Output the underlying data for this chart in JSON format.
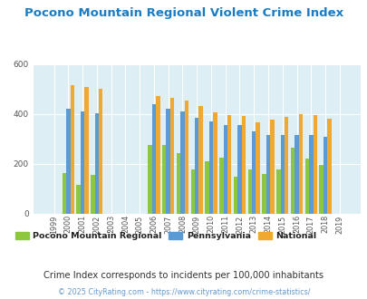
{
  "title": "Pocono Mountain Regional Violent Crime Index",
  "title_color": "#1a7dc4",
  "subtitle": "Crime Index corresponds to incidents per 100,000 inhabitants",
  "subtitle_color": "#333333",
  "footer": "© 2025 CityRating.com - https://www.cityrating.com/crime-statistics/",
  "footer_color": "#6699cc",
  "years": [
    1999,
    2000,
    2001,
    2002,
    2003,
    2004,
    2005,
    2006,
    2007,
    2008,
    2009,
    2010,
    2011,
    2012,
    2013,
    2014,
    2015,
    2016,
    2017,
    2018,
    2019
  ],
  "pocono": [
    0,
    162,
    118,
    155,
    0,
    0,
    0,
    278,
    278,
    245,
    178,
    210,
    225,
    148,
    178,
    160,
    178,
    265,
    220,
    197,
    0
  ],
  "pennsylvania": [
    0,
    420,
    410,
    403,
    0,
    0,
    0,
    440,
    420,
    410,
    385,
    370,
    358,
    355,
    332,
    315,
    315,
    315,
    315,
    308,
    0
  ],
  "national": [
    0,
    515,
    510,
    500,
    0,
    0,
    0,
    474,
    466,
    455,
    431,
    407,
    396,
    393,
    368,
    379,
    388,
    401,
    397,
    383,
    0
  ],
  "pocono_color": "#8dc63f",
  "pennsylvania_color": "#5b9bd5",
  "national_color": "#f0a830",
  "background_color": "#ddeef5",
  "fig_background": "#ffffff",
  "ylim": [
    0,
    600
  ],
  "yticks": [
    0,
    200,
    400,
    600
  ],
  "legend_labels": [
    "Pocono Mountain Regional",
    "Pennsylvania",
    "National"
  ],
  "bar_width": 0.28
}
